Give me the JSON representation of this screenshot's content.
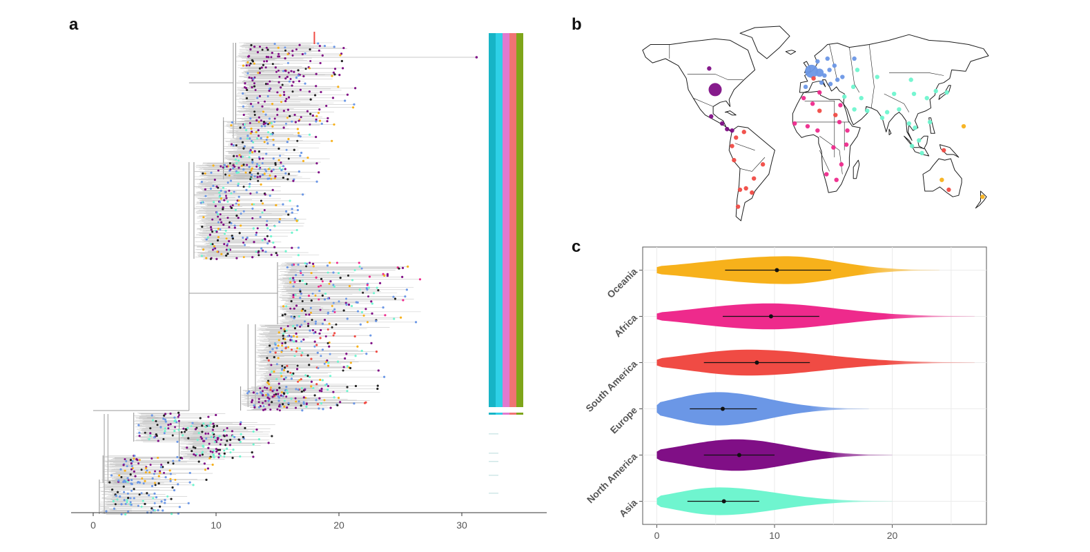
{
  "panels": {
    "a": "a",
    "b": "b",
    "c": "c"
  },
  "colors": {
    "Oceania": "#f7b11b",
    "Africa": "#ee2a8c",
    "South America": "#f04b44",
    "Europe": "#6b97e6",
    "North America": "#800f86",
    "Asia": "#6ff5cf"
  },
  "chart_data": [
    {
      "type": "tree",
      "panel": "a",
      "x_ticks": [
        "0",
        "10",
        "20",
        "30"
      ],
      "xlim": [
        -1,
        37
      ],
      "strip_colors": [
        "#17b4c6",
        "#2fd0e6",
        "#e079cf",
        "#f07373",
        "#7ea51a"
      ],
      "tip_colors": [
        "#800f86",
        "#6b97e6",
        "#6ff5cf",
        "#f7b11b",
        "#f04b44",
        "#ee2a8c",
        "#222222"
      ]
    },
    {
      "type": "map",
      "panel": "b",
      "points": [
        {
          "region": "North America",
          "lon": -95,
          "lat": 38,
          "size": "large"
        },
        {
          "region": "North America",
          "lon": -101,
          "lat": 53,
          "size": "small"
        },
        {
          "region": "North America",
          "lon": -99,
          "lat": 19,
          "size": "small"
        },
        {
          "region": "North America",
          "lon": -88,
          "lat": 14,
          "size": "small"
        },
        {
          "region": "North America",
          "lon": -83,
          "lat": 10,
          "size": "small"
        },
        {
          "region": "North America",
          "lon": -78,
          "lat": 9,
          "size": "small"
        },
        {
          "region": "Europe",
          "lon": 2,
          "lat": 51,
          "size": "large"
        },
        {
          "region": "Europe",
          "lon": 10,
          "lat": 50,
          "size": "medium"
        },
        {
          "region": "Europe",
          "lon": 15,
          "lat": 48,
          "size": "small"
        },
        {
          "region": "Europe",
          "lon": 20,
          "lat": 52,
          "size": "small"
        },
        {
          "region": "Europe",
          "lon": 25,
          "lat": 55,
          "size": "small"
        },
        {
          "region": "Europe",
          "lon": 18,
          "lat": 60,
          "size": "small"
        },
        {
          "region": "Europe",
          "lon": 28,
          "lat": 45,
          "size": "small"
        },
        {
          "region": "Europe",
          "lon": 12,
          "lat": 43,
          "size": "small"
        },
        {
          "region": "Europe",
          "lon": -4,
          "lat": 40,
          "size": "small"
        },
        {
          "region": "Europe",
          "lon": 8,
          "lat": 58,
          "size": "small"
        },
        {
          "region": "Europe",
          "lon": 45,
          "lat": 60,
          "size": "small"
        },
        {
          "region": "Europe",
          "lon": 33,
          "lat": 47,
          "size": "small"
        },
        {
          "region": "Europe",
          "lon": 21,
          "lat": 42,
          "size": "small"
        },
        {
          "region": "Asia",
          "lon": 48,
          "lat": 52,
          "size": "small"
        },
        {
          "region": "Asia",
          "lon": 68,
          "lat": 47,
          "size": "small"
        },
        {
          "region": "Asia",
          "lon": 102,
          "lat": 45,
          "size": "small"
        },
        {
          "region": "Asia",
          "lon": 85,
          "lat": 35,
          "size": "small"
        },
        {
          "region": "Asia",
          "lon": 105,
          "lat": 35,
          "size": "small"
        },
        {
          "region": "Asia",
          "lon": 118,
          "lat": 32,
          "size": "small"
        },
        {
          "region": "Asia",
          "lon": 127,
          "lat": 37,
          "size": "small"
        },
        {
          "region": "Asia",
          "lon": 138,
          "lat": 36,
          "size": "small"
        },
        {
          "region": "Asia",
          "lon": 78,
          "lat": 22,
          "size": "small"
        },
        {
          "region": "Asia",
          "lon": 73,
          "lat": 18,
          "size": "small"
        },
        {
          "region": "Asia",
          "lon": 90,
          "lat": 24,
          "size": "small"
        },
        {
          "region": "Asia",
          "lon": 100,
          "lat": 14,
          "size": "small"
        },
        {
          "region": "Asia",
          "lon": 106,
          "lat": 11,
          "size": "small"
        },
        {
          "region": "Asia",
          "lon": 121,
          "lat": 15,
          "size": "small"
        },
        {
          "region": "Asia",
          "lon": 110,
          "lat": 2,
          "size": "small"
        },
        {
          "region": "Asia",
          "lon": 103,
          "lat": -2,
          "size": "small"
        },
        {
          "region": "Asia",
          "lon": 113,
          "lat": -7,
          "size": "small"
        },
        {
          "region": "Asia",
          "lon": 45,
          "lat": 24,
          "size": "small"
        },
        {
          "region": "Asia",
          "lon": 52,
          "lat": 32,
          "size": "small"
        },
        {
          "region": "Asia",
          "lon": 35,
          "lat": 33,
          "size": "small"
        },
        {
          "region": "Asia",
          "lon": 44,
          "lat": 40,
          "size": "small"
        },
        {
          "region": "Asia",
          "lon": 58,
          "lat": 23,
          "size": "small"
        },
        {
          "region": "Africa",
          "lon": -6,
          "lat": 32,
          "size": "small"
        },
        {
          "region": "Africa",
          "lon": 3,
          "lat": 28,
          "size": "small"
        },
        {
          "region": "Africa",
          "lon": 31,
          "lat": 27,
          "size": "small"
        },
        {
          "region": "Africa",
          "lon": -15,
          "lat": 14,
          "size": "small"
        },
        {
          "region": "Africa",
          "lon": -2,
          "lat": 12,
          "size": "small"
        },
        {
          "region": "Africa",
          "lon": 8,
          "lat": 9,
          "size": "small"
        },
        {
          "region": "Africa",
          "lon": 38,
          "lat": 9,
          "size": "small"
        },
        {
          "region": "Africa",
          "lon": 30,
          "lat": 15,
          "size": "small"
        },
        {
          "region": "Africa",
          "lon": 24,
          "lat": -3,
          "size": "small"
        },
        {
          "region": "Africa",
          "lon": 37,
          "lat": -1,
          "size": "small"
        },
        {
          "region": "Africa",
          "lon": 32,
          "lat": -15,
          "size": "small"
        },
        {
          "region": "Africa",
          "lon": 27,
          "lat": -26,
          "size": "small"
        },
        {
          "region": "Africa",
          "lon": 17,
          "lat": -22,
          "size": "small"
        },
        {
          "region": "Africa",
          "lon": 10,
          "lat": 36,
          "size": "small"
        },
        {
          "region": "South America",
          "lon": -74,
          "lat": 4,
          "size": "small"
        },
        {
          "region": "South America",
          "lon": -78,
          "lat": -2,
          "size": "small"
        },
        {
          "region": "South America",
          "lon": -66,
          "lat": 8,
          "size": "small"
        },
        {
          "region": "South America",
          "lon": -76,
          "lat": -12,
          "size": "small"
        },
        {
          "region": "South America",
          "lon": -47,
          "lat": -15,
          "size": "small"
        },
        {
          "region": "South America",
          "lon": -64,
          "lat": -32,
          "size": "small"
        },
        {
          "region": "South America",
          "lon": -70,
          "lat": -33,
          "size": "small"
        },
        {
          "region": "South America",
          "lon": -58,
          "lat": -35,
          "size": "small"
        },
        {
          "region": "South America",
          "lon": -72,
          "lat": -45,
          "size": "small"
        },
        {
          "region": "South America",
          "lon": -56,
          "lat": -25,
          "size": "small"
        },
        {
          "region": "South America",
          "lon": 4,
          "lat": 46,
          "size": "small"
        },
        {
          "region": "South America",
          "lon": 10,
          "lat": 23,
          "size": "small"
        },
        {
          "region": "South America",
          "lon": 26,
          "lat": 20,
          "size": "small"
        },
        {
          "region": "South America",
          "lon": 135,
          "lat": -5,
          "size": "small"
        },
        {
          "region": "South America",
          "lon": 140,
          "lat": -33,
          "size": "small"
        },
        {
          "region": "Oceania",
          "lon": 133,
          "lat": -26,
          "size": "small"
        },
        {
          "region": "Oceania",
          "lon": 155,
          "lat": 12,
          "size": "small"
        },
        {
          "region": "Oceania",
          "lon": 174,
          "lat": -38,
          "size": "small"
        }
      ]
    },
    {
      "type": "violin",
      "panel": "c",
      "categories": [
        "Oceania",
        "Africa",
        "South America",
        "Europe",
        "North America",
        "Asia"
      ],
      "x_ticks": [
        "0",
        "10",
        "20"
      ],
      "xlim": [
        -1.2,
        28
      ],
      "grid": true,
      "series": [
        {
          "name": "Oceania",
          "min": 0,
          "max": 24,
          "mean": 10.2,
          "ci": [
            5.8,
            14.8
          ],
          "mode": 11.0,
          "width": 0.3
        },
        {
          "name": "Africa",
          "min": 0,
          "max": 27,
          "mean": 9.7,
          "ci": [
            5.6,
            13.8
          ],
          "mode": 9.5,
          "width": 0.28
        },
        {
          "name": "South America",
          "min": 0,
          "max": 27,
          "mean": 8.5,
          "ci": [
            4.0,
            13.0
          ],
          "mode": 7.8,
          "width": 0.28
        },
        {
          "name": "Europe",
          "min": 0,
          "max": 18,
          "mean": 5.6,
          "ci": [
            2.8,
            8.5
          ],
          "mode": 5.2,
          "width": 0.36
        },
        {
          "name": "North America",
          "min": 0,
          "max": 20,
          "mean": 7.0,
          "ci": [
            4.0,
            10.0
          ],
          "mode": 6.8,
          "width": 0.34
        },
        {
          "name": "Asia",
          "min": 0,
          "max": 20,
          "mean": 5.7,
          "ci": [
            2.6,
            8.7
          ],
          "mode": 5.3,
          "width": 0.3
        }
      ]
    }
  ]
}
